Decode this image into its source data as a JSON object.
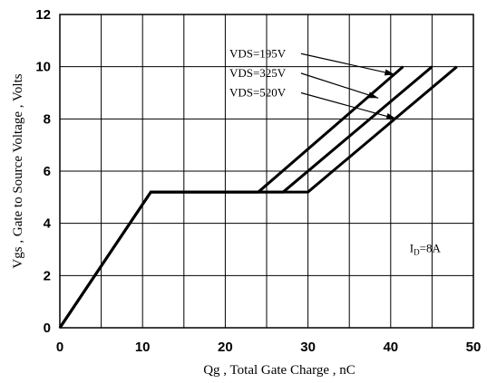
{
  "chart_data": {
    "type": "line",
    "xlabel": "Qg , Total Gate Charge , nC",
    "ylabel": "Vgs , Gate to Source Voltage , Volts",
    "xlim": [
      0,
      50
    ],
    "ylim": [
      0,
      12
    ],
    "x_ticks": [
      0,
      10,
      20,
      30,
      40,
      50
    ],
    "y_ticks": [
      0,
      2,
      4,
      6,
      8,
      10,
      12
    ],
    "x_tick_labels": [
      "0",
      "10",
      "20",
      "30",
      "40",
      "50"
    ],
    "y_tick_labels": [
      "0",
      "2",
      "4",
      "6",
      "8",
      "10",
      "12"
    ],
    "grid": true,
    "series": [
      {
        "name": "VDS=195V",
        "x": [
          0,
          11,
          24,
          41.5
        ],
        "y": [
          0,
          5.2,
          5.2,
          10
        ]
      },
      {
        "name": "VDS=325V",
        "x": [
          0,
          11,
          27,
          45
        ],
        "y": [
          0,
          5.2,
          5.2,
          10
        ]
      },
      {
        "name": "VDS=520V",
        "x": [
          0,
          11,
          30,
          48
        ],
        "y": [
          0,
          5.2,
          5.2,
          10
        ]
      }
    ],
    "annotations": [
      {
        "text": "VDS=195V",
        "x": 20.5,
        "y": 10.5,
        "target_x": 40.5,
        "target_y": 9.7
      },
      {
        "text": "VDS=325V",
        "x": 20.5,
        "y": 9.75,
        "target_x": 38.5,
        "target_y": 8.8
      },
      {
        "text": "VDS=520V",
        "x": 20.5,
        "y": 9.0,
        "target_x": 40.7,
        "target_y": 8.0
      }
    ],
    "condition": {
      "main": "I",
      "sub": "D",
      "rest": "=8A",
      "x": 42.3,
      "y": 2.9
    }
  }
}
